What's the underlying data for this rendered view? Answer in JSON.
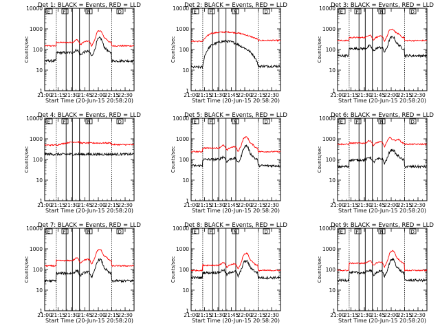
{
  "figure": {
    "ylabel": "Counts/sec",
    "xlabel": "Start Time (20-Jun-15 20:58:20)",
    "x_ticks": [
      "21:00",
      "21:15",
      "21:30",
      "21:45",
      "22:00",
      "22:15",
      "22:30"
    ],
    "y_ticks": [
      "1",
      "10",
      "100",
      "1000",
      "10000"
    ],
    "legend_letters": [
      "E",
      "F",
      "N",
      "D"
    ],
    "colors": {
      "events": "#000000",
      "lld": "#ff0000",
      "axis": "#000000",
      "background": "#ffffff"
    }
  },
  "chart_data": [
    {
      "type": "line",
      "title": "Det 1: BLACK = Events, RED = LLD",
      "xlabel": "Start Time (20-Jun-15 20:58:20)",
      "ylabel": "Counts/sec",
      "ylim": [
        1,
        10000
      ],
      "yscale": "log",
      "series": [
        {
          "name": "Events",
          "color": "#000000",
          "profile": "flare",
          "base": 28,
          "step_level": 70,
          "peak": 350
        },
        {
          "name": "LLD",
          "color": "#ff0000",
          "profile": "flare",
          "base": 150,
          "step_level": 220,
          "peak": 800
        }
      ]
    },
    {
      "type": "line",
      "title": "Det 2: BLACK = Events, RED = LLD",
      "xlabel": "Start Time (20-Jun-15 20:58:20)",
      "ylabel": "Counts/sec",
      "ylim": [
        1,
        10000
      ],
      "yscale": "log",
      "series": [
        {
          "name": "Events",
          "color": "#000000",
          "profile": "hump",
          "base": 14,
          "step_level": 150,
          "peak": 250
        },
        {
          "name": "LLD",
          "color": "#ff0000",
          "profile": "hump",
          "base": 250,
          "step_level": 600,
          "peak": 700
        }
      ]
    },
    {
      "type": "line",
      "title": "Det 3: BLACK = Events, RED = LLD",
      "xlabel": "Start Time (20-Jun-15 20:58:20)",
      "ylabel": "Counts/sec",
      "ylim": [
        1,
        10000
      ],
      "yscale": "log",
      "series": [
        {
          "name": "Events",
          "color": "#000000",
          "profile": "flare",
          "base": 50,
          "step_level": 110,
          "peak": 400
        },
        {
          "name": "LLD",
          "color": "#ff0000",
          "profile": "flare",
          "base": 270,
          "step_level": 380,
          "peak": 900
        }
      ]
    },
    {
      "type": "line",
      "title": "Det 4: BLACK = Events, RED = LLD",
      "xlabel": "Start Time (20-Jun-15 20:58:20)",
      "ylabel": "Counts/sec",
      "ylim": [
        1,
        10000
      ],
      "yscale": "log",
      "series": [
        {
          "name": "Events",
          "color": "#000000",
          "profile": "flat",
          "base": 180,
          "step_level": 180,
          "peak": 180
        },
        {
          "name": "LLD",
          "color": "#ff0000",
          "profile": "bump",
          "base": 500,
          "step_level": 700,
          "peak": 700
        }
      ]
    },
    {
      "type": "line",
      "title": "Det 5: BLACK = Events, RED = LLD",
      "xlabel": "Start Time (20-Jun-15 20:58:20)",
      "ylabel": "Counts/sec",
      "ylim": [
        1,
        10000
      ],
      "yscale": "log",
      "series": [
        {
          "name": "Events",
          "color": "#000000",
          "profile": "flare",
          "base": 50,
          "step_level": 100,
          "peak": 450
        },
        {
          "name": "LLD",
          "color": "#ff0000",
          "profile": "flare",
          "base": 240,
          "step_level": 360,
          "peak": 1200
        }
      ]
    },
    {
      "type": "line",
      "title": "Det 6: BLACK = Events, RED = LLD",
      "xlabel": "Start Time (20-Jun-15 20:58:20)",
      "ylabel": "Counts/sec",
      "ylim": [
        1,
        10000
      ],
      "yscale": "log",
      "series": [
        {
          "name": "Events",
          "color": "#000000",
          "profile": "flare",
          "base": 45,
          "step_level": 95,
          "peak": 280
        },
        {
          "name": "LLD",
          "color": "#ff0000",
          "profile": "flare",
          "base": 550,
          "step_level": 620,
          "peak": 900
        }
      ]
    },
    {
      "type": "line",
      "title": "Det 7: BLACK = Events, RED = LLD",
      "xlabel": "Start Time (20-Jun-15 20:58:20)",
      "ylabel": "Counts/sec",
      "ylim": [
        1,
        10000
      ],
      "yscale": "log",
      "series": [
        {
          "name": "Events",
          "color": "#000000",
          "profile": "flare",
          "base": 28,
          "step_level": 65,
          "peak": 300
        },
        {
          "name": "LLD",
          "color": "#ff0000",
          "profile": "flare",
          "base": 150,
          "step_level": 270,
          "peak": 900
        }
      ]
    },
    {
      "type": "line",
      "title": "Det 8: BLACK = Events, RED = LLD",
      "xlabel": "Start Time (20-Jun-15 20:58:20)",
      "ylabel": "Counts/sec",
      "ylim": [
        1,
        10000
      ],
      "yscale": "log",
      "series": [
        {
          "name": "Events",
          "color": "#000000",
          "profile": "flare",
          "base": 40,
          "step_level": 70,
          "peak": 250
        },
        {
          "name": "LLD",
          "color": "#ff0000",
          "profile": "flare",
          "base": 90,
          "step_level": 160,
          "peak": 600
        }
      ]
    },
    {
      "type": "line",
      "title": "Det 9: BLACK = Events, RED = LLD",
      "xlabel": "Start Time (20-Jun-15 20:58:20)",
      "ylabel": "Counts/sec",
      "ylim": [
        1,
        10000
      ],
      "yscale": "log",
      "series": [
        {
          "name": "Events",
          "color": "#000000",
          "profile": "flare",
          "base": 30,
          "step_level": 70,
          "peak": 300
        },
        {
          "name": "LLD",
          "color": "#ff0000",
          "profile": "flare",
          "base": 90,
          "step_level": 200,
          "peak": 800
        }
      ]
    }
  ]
}
